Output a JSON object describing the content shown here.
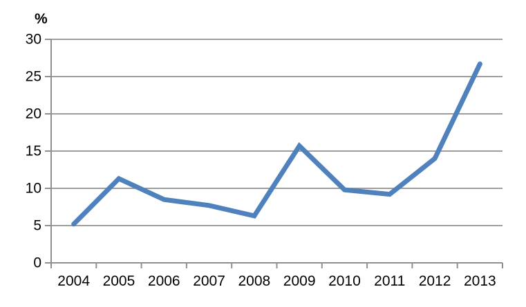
{
  "page": {
    "background": "#ffffff"
  },
  "chart_data": {
    "type": "line",
    "title": "",
    "xlabel": "",
    "ylabel": "%",
    "categories": [
      "2004",
      "2005",
      "2006",
      "2007",
      "2008",
      "2009",
      "2010",
      "2011",
      "2012",
      "2013"
    ],
    "values": [
      5.2,
      11.3,
      8.5,
      7.7,
      6.3,
      15.7,
      9.8,
      9.2,
      14.0,
      26.7
    ],
    "ylim": [
      0,
      30
    ],
    "yticks": [
      0,
      5,
      10,
      15,
      20,
      25,
      30
    ],
    "ytick_step": 5,
    "grid": true,
    "legend_position": "none",
    "colors": {
      "line": "#4F81BD",
      "grid": "#8F8F8F",
      "axis": "#8F8F8F",
      "text": "#000000",
      "background": "#ffffff"
    }
  }
}
